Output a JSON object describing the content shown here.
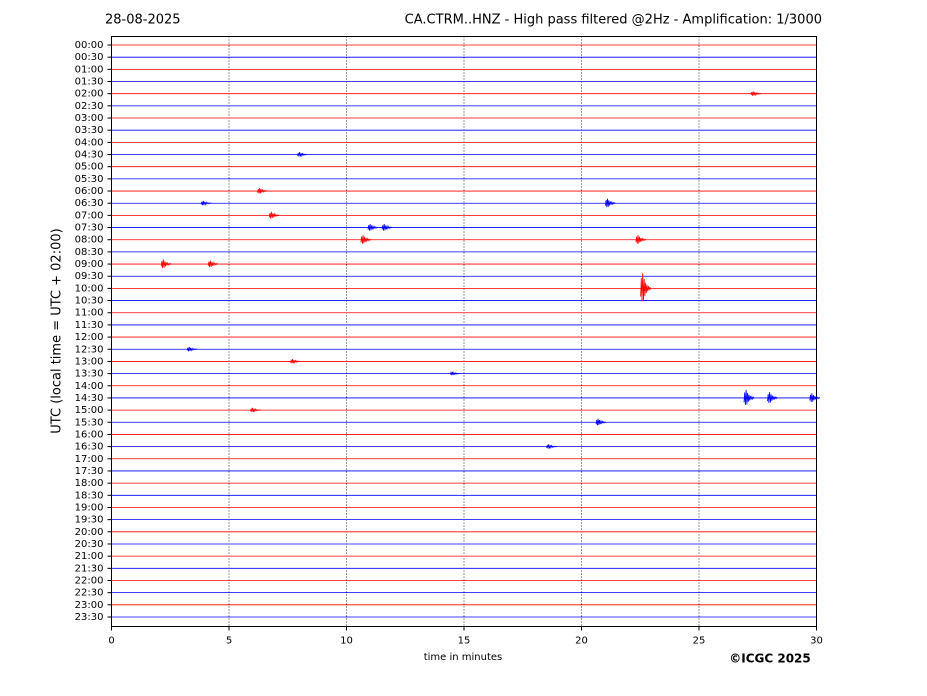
{
  "chart_data": {
    "type": "helicorder",
    "date": "28-08-2025",
    "title": "CA.CTRM..HNZ - High pass filtered @2Hz - Amplification: 1/3000",
    "xlabel": "time in minutes",
    "ylabel": "UTC (local time = UTC + 02:00)",
    "credit": "©ICGC 2025",
    "categories": [
      "00:00",
      "00:30",
      "01:00",
      "01:30",
      "02:00",
      "02:30",
      "03:00",
      "03:30",
      "04:00",
      "04:30",
      "05:00",
      "05:30",
      "06:00",
      "06:30",
      "07:00",
      "07:30",
      "08:00",
      "08:30",
      "09:00",
      "09:30",
      "10:00",
      "10:30",
      "11:00",
      "11:30",
      "12:00",
      "12:30",
      "13:00",
      "13:30",
      "14:00",
      "14:30",
      "15:00",
      "15:30",
      "16:00",
      "16:30",
      "17:00",
      "17:30",
      "18:00",
      "18:30",
      "19:00",
      "19:30",
      "20:00",
      "20:30",
      "21:00",
      "21:30",
      "22:00",
      "22:30",
      "23:00",
      "23:30"
    ],
    "colors": [
      "#ff0000",
      "#0000ff"
    ],
    "xlim": [
      0,
      30
    ],
    "xticks": [
      0,
      5,
      10,
      15,
      20,
      25,
      30
    ],
    "grid": true,
    "bursts": [
      {
        "row": "10:00",
        "x": 22.6,
        "amplitude": 1.3
      },
      {
        "row": "14:30",
        "x": 27.0,
        "amplitude": 0.7
      },
      {
        "row": "14:30",
        "x": 28.0,
        "amplitude": 0.5
      },
      {
        "row": "14:30",
        "x": 29.8,
        "amplitude": 0.4
      },
      {
        "row": "09:00",
        "x": 2.2,
        "amplitude": 0.4
      },
      {
        "row": "09:00",
        "x": 4.2,
        "amplitude": 0.3
      },
      {
        "row": "08:00",
        "x": 10.7,
        "amplitude": 0.4
      },
      {
        "row": "08:00",
        "x": 22.4,
        "amplitude": 0.4
      },
      {
        "row": "07:30",
        "x": 11.0,
        "amplitude": 0.3
      },
      {
        "row": "07:30",
        "x": 11.6,
        "amplitude": 0.3
      },
      {
        "row": "06:30",
        "x": 21.1,
        "amplitude": 0.4
      },
      {
        "row": "06:30",
        "x": 3.9,
        "amplitude": 0.2
      },
      {
        "row": "07:00",
        "x": 6.8,
        "amplitude": 0.3
      },
      {
        "row": "15:30",
        "x": 20.7,
        "amplitude": 0.3
      },
      {
        "row": "13:30",
        "x": 14.5,
        "amplitude": 0.15
      },
      {
        "row": "02:00",
        "x": 27.3,
        "amplitude": 0.2
      },
      {
        "row": "06:00",
        "x": 6.3,
        "amplitude": 0.25
      },
      {
        "row": "04:30",
        "x": 8.0,
        "amplitude": 0.2
      },
      {
        "row": "12:30",
        "x": 3.3,
        "amplitude": 0.2
      },
      {
        "row": "13:00",
        "x": 7.7,
        "amplitude": 0.2
      },
      {
        "row": "15:00",
        "x": 6.0,
        "amplitude": 0.2
      },
      {
        "row": "16:30",
        "x": 18.6,
        "amplitude": 0.2
      }
    ]
  }
}
